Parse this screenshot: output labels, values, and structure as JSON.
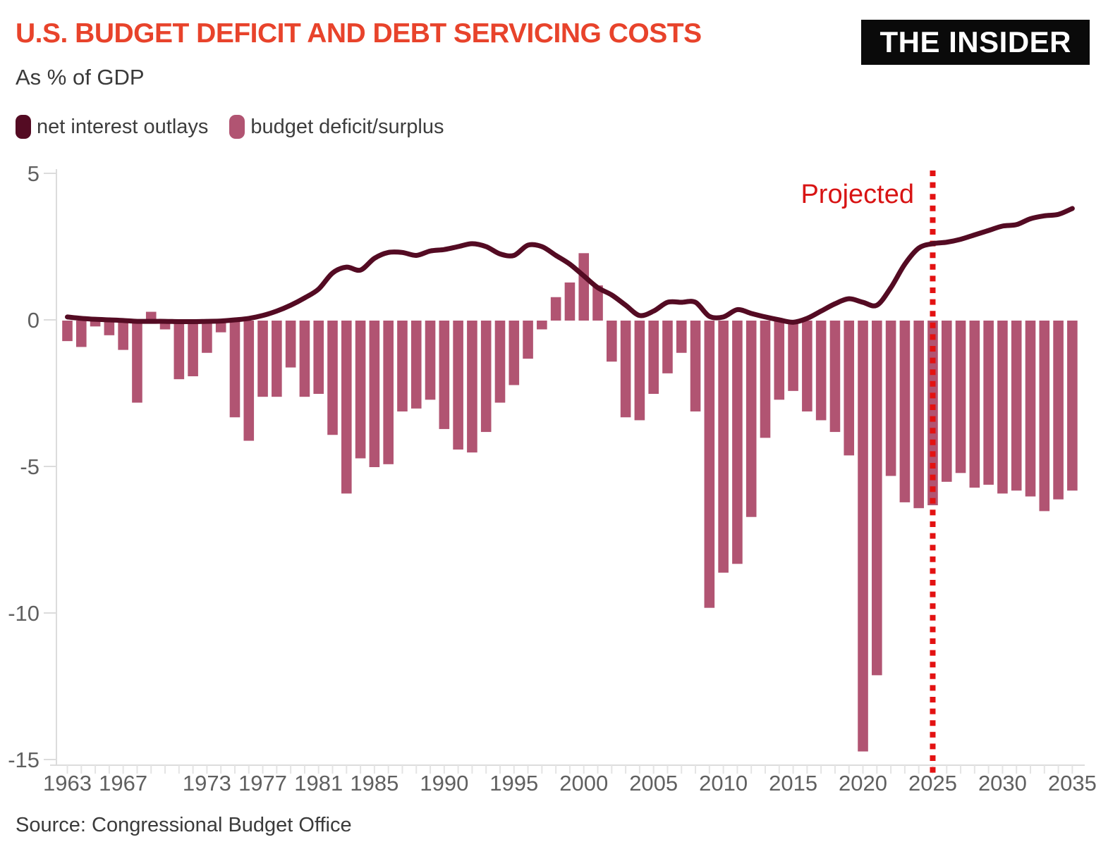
{
  "header": {
    "title": "U.S. BUDGET DEFICIT AND DEBT SERVICING COSTS",
    "subtitle": "As % of GDP",
    "logo": "THE INSIDER",
    "title_color": "#e8432b"
  },
  "legend": {
    "items": [
      {
        "label": "net interest outlays",
        "color": "#540b23"
      },
      {
        "label": "budget deficit/surplus",
        "color": "#b15472"
      }
    ]
  },
  "projected": {
    "label": "Projected",
    "color": "#d81414"
  },
  "footer": {
    "source": "Source: Congressional Budget Office"
  },
  "chart_data": {
    "type": "bar+line",
    "title": "U.S. BUDGET DEFICIT AND DEBT SERVICING COSTS",
    "unit": "As % of GDP",
    "ylim": [
      -15,
      5
    ],
    "y_ticks": [
      5,
      0,
      -5,
      -10,
      -15
    ],
    "x_ticks": [
      1963,
      1967,
      1973,
      1977,
      1981,
      1985,
      1990,
      1995,
      2000,
      2005,
      2010,
      2015,
      2020,
      2025,
      2030,
      2035
    ],
    "grid": false,
    "projection": {
      "start_year": 2025,
      "style": "vertical-dotted-line",
      "color": "#e31212"
    },
    "x": [
      1963,
      1964,
      1965,
      1966,
      1967,
      1968,
      1969,
      1970,
      1971,
      1972,
      1973,
      1974,
      1975,
      1976,
      1977,
      1978,
      1979,
      1980,
      1981,
      1982,
      1983,
      1984,
      1985,
      1986,
      1987,
      1988,
      1989,
      1990,
      1991,
      1992,
      1993,
      1994,
      1995,
      1996,
      1997,
      1998,
      1999,
      2000,
      2001,
      2002,
      2003,
      2004,
      2005,
      2006,
      2007,
      2008,
      2009,
      2010,
      2011,
      2012,
      2013,
      2014,
      2015,
      2016,
      2017,
      2018,
      2019,
      2020,
      2021,
      2022,
      2023,
      2024,
      2025,
      2026,
      2027,
      2028,
      2029,
      2030,
      2031,
      2032,
      2033,
      2034,
      2035
    ],
    "series": [
      {
        "name": "budget deficit/surplus",
        "type": "bar",
        "color": "#b15472",
        "values": [
          -0.7,
          -0.9,
          -0.2,
          -0.5,
          -1.0,
          -2.8,
          0.3,
          -0.3,
          -2.0,
          -1.9,
          -1.1,
          -0.4,
          -3.3,
          -4.1,
          -2.6,
          -2.6,
          -1.6,
          -2.6,
          -2.5,
          -3.9,
          -5.9,
          -4.7,
          -5.0,
          -4.9,
          -3.1,
          -3.0,
          -2.7,
          -3.7,
          -4.4,
          -4.5,
          -3.8,
          -2.8,
          -2.2,
          -1.3,
          -0.3,
          0.8,
          1.3,
          2.3,
          1.2,
          -1.4,
          -3.3,
          -3.4,
          -2.5,
          -1.8,
          -1.1,
          -3.1,
          -9.8,
          -8.6,
          -8.3,
          -6.7,
          -4.0,
          -2.7,
          -2.4,
          -3.1,
          -3.4,
          -3.8,
          -4.6,
          -14.7,
          -12.1,
          -5.3,
          -6.2,
          -6.4,
          -6.3,
          -5.5,
          -5.2,
          -5.7,
          -5.6,
          -5.9,
          -5.8,
          -6.0,
          -6.5,
          -6.1,
          -5.8
        ]
      },
      {
        "name": "net interest outlays",
        "type": "line",
        "color": "#540b23",
        "values": [
          0.1,
          0.05,
          0.02,
          0.0,
          -0.02,
          -0.05,
          -0.05,
          -0.05,
          -0.06,
          -0.06,
          -0.05,
          -0.04,
          0.0,
          0.05,
          0.15,
          0.3,
          0.5,
          0.75,
          1.05,
          1.6,
          1.8,
          1.7,
          2.1,
          2.3,
          2.3,
          2.2,
          2.35,
          2.4,
          2.5,
          2.6,
          2.5,
          2.25,
          2.2,
          2.55,
          2.5,
          2.2,
          1.9,
          1.5,
          1.1,
          0.85,
          0.5,
          0.15,
          0.3,
          0.6,
          0.6,
          0.6,
          0.12,
          0.1,
          0.35,
          0.22,
          0.1,
          0.0,
          -0.08,
          0.05,
          0.3,
          0.55,
          0.72,
          0.6,
          0.5,
          1.1,
          1.9,
          2.45,
          2.6,
          2.65,
          2.75,
          2.9,
          3.05,
          3.2,
          3.25,
          3.45,
          3.55,
          3.6,
          3.8
        ]
      }
    ],
    "axis_color": "#dcdcdc",
    "tick_label_color": "#606060"
  }
}
